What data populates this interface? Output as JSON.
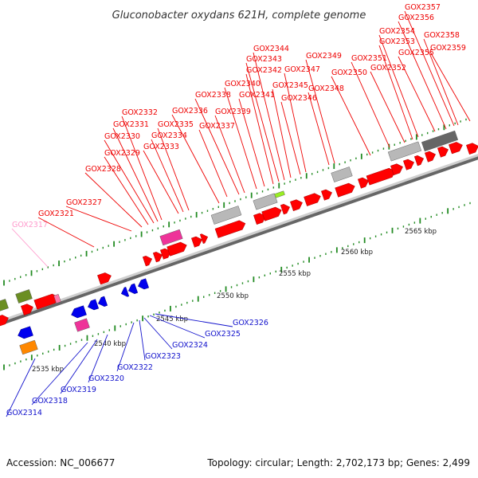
{
  "title": "Gluconobacter oxydans 621H, complete genome",
  "footer": {
    "accession": "Accession: NC_006677",
    "topology": "Topology: circular; Length: 2,702,173 bp; Genes: 2,499"
  },
  "colors": {
    "forward": "#ff0000",
    "reverse": "#0000ee",
    "pink": "#ee3399",
    "gray": "#b8b8b8",
    "green": "#6b8e23",
    "backbone": "#999999",
    "tick": "#228b22"
  },
  "scale_labels": [
    "2535 kbp",
    "2540 kbp",
    "2545 kbp",
    "2550 kbp",
    "2555 kbp",
    "2560 kbp",
    "2565 kbp"
  ],
  "forward_labels": [
    "GOX2317",
    "GOX2321",
    "GOX2327",
    "GOX2328",
    "GOX2329",
    "GOX2330",
    "GOX2331",
    "GOX2332",
    "GOX2333",
    "GOX2334",
    "GOX2335",
    "GOX2336",
    "GOX2337",
    "GOX2338",
    "GOX2339",
    "GOX2340",
    "GOX2341",
    "GOX2342",
    "GOX2343",
    "GOX2344",
    "GOX2345",
    "GOX2346",
    "GOX2347",
    "GOX2348",
    "GOX2349",
    "GOX2350",
    "GOX2351",
    "GOX2352",
    "GOX2353",
    "GOX2354",
    "GOX2355",
    "GOX2356",
    "GOX2357",
    "GOX2358",
    "GOX2359"
  ],
  "reverse_labels": [
    "GOX2314",
    "GOX2318",
    "GOX2319",
    "GOX2320",
    "GOX2322",
    "GOX2323",
    "GOX2324",
    "GOX2325",
    "GOX2326"
  ]
}
